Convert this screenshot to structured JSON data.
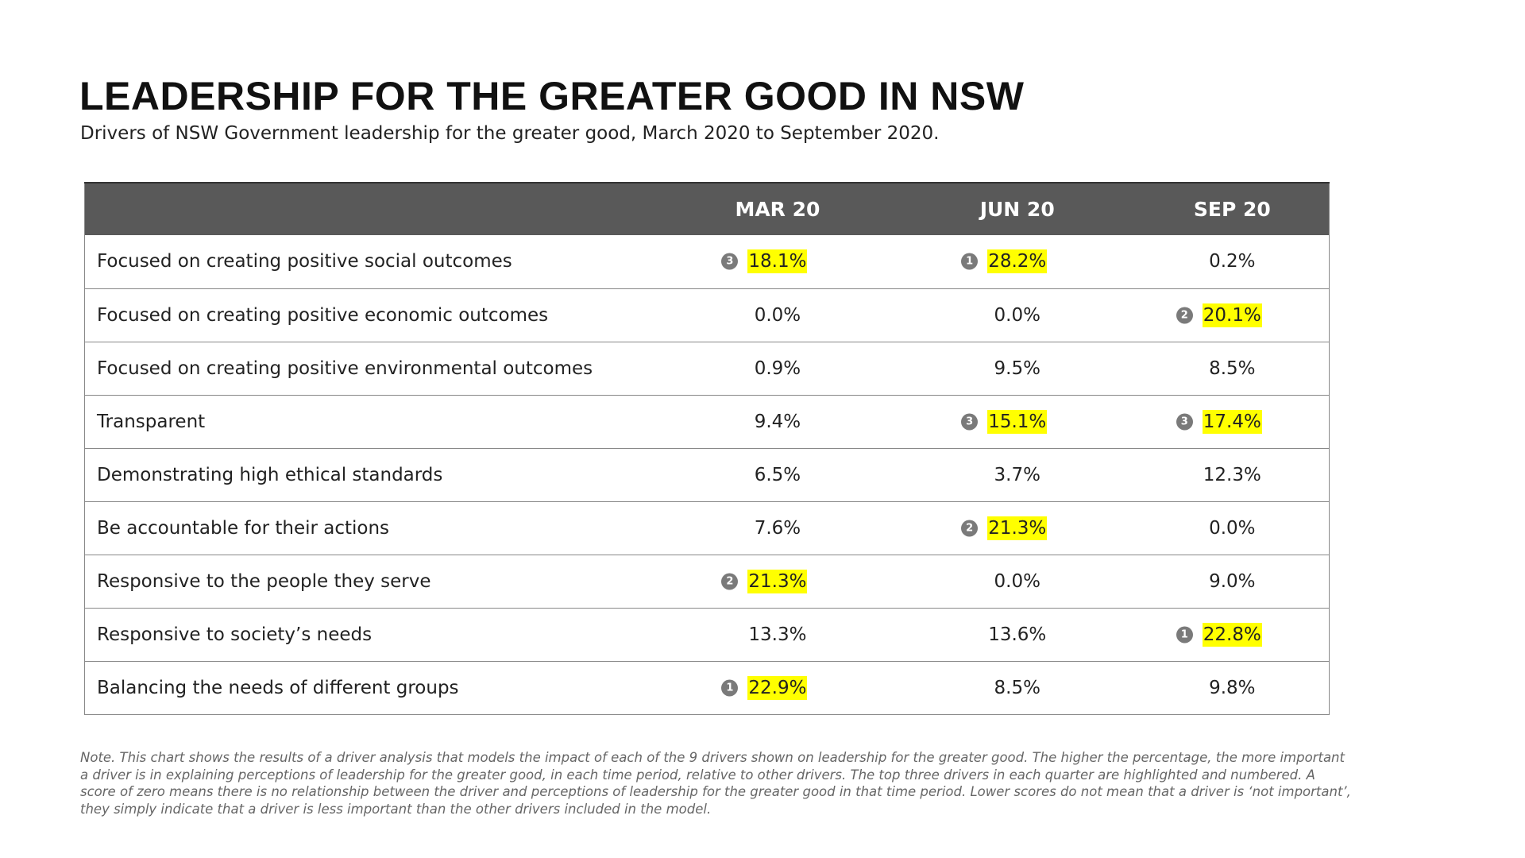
{
  "title": "LEADERSHIP FOR THE GREATER GOOD IN NSW",
  "subtitle": "Drivers of NSW Government leadership for the greater good, March 2020 to September 2020.",
  "colors": {
    "header_bg": "#595959",
    "highlight": "#ffff00",
    "badge": "#7a7a7a"
  },
  "table": {
    "columns": [
      "",
      "MAR 20",
      "JUN 20",
      "SEP 20"
    ],
    "rows": [
      {
        "label": "Focused on creating positive social outcomes",
        "cells": [
          {
            "value": "18.1%",
            "rank": "3"
          },
          {
            "value": "28.2%",
            "rank": "1"
          },
          {
            "value": "0.2%",
            "rank": null
          }
        ]
      },
      {
        "label": "Focused on creating positive economic outcomes",
        "cells": [
          {
            "value": "0.0%",
            "rank": null
          },
          {
            "value": "0.0%",
            "rank": null
          },
          {
            "value": "20.1%",
            "rank": "2"
          }
        ]
      },
      {
        "label": "Focused on creating positive environmental outcomes",
        "cells": [
          {
            "value": "0.9%",
            "rank": null
          },
          {
            "value": "9.5%",
            "rank": null
          },
          {
            "value": "8.5%",
            "rank": null
          }
        ]
      },
      {
        "label": "Transparent",
        "cells": [
          {
            "value": "9.4%",
            "rank": null
          },
          {
            "value": "15.1%",
            "rank": "3"
          },
          {
            "value": "17.4%",
            "rank": "3"
          }
        ]
      },
      {
        "label": "Demonstrating high ethical standards",
        "cells": [
          {
            "value": "6.5%",
            "rank": null
          },
          {
            "value": "3.7%",
            "rank": null
          },
          {
            "value": "12.3%",
            "rank": null
          }
        ]
      },
      {
        "label": "Be accountable for their actions",
        "cells": [
          {
            "value": "7.6%",
            "rank": null
          },
          {
            "value": "21.3%",
            "rank": "2"
          },
          {
            "value": "0.0%",
            "rank": null
          }
        ]
      },
      {
        "label": "Responsive to the people they serve",
        "cells": [
          {
            "value": "21.3%",
            "rank": "2"
          },
          {
            "value": "0.0%",
            "rank": null
          },
          {
            "value": "9.0%",
            "rank": null
          }
        ]
      },
      {
        "label": "Responsive to society’s needs",
        "cells": [
          {
            "value": "13.3%",
            "rank": null
          },
          {
            "value": "13.6%",
            "rank": null
          },
          {
            "value": "22.8%",
            "rank": "1"
          }
        ]
      },
      {
        "label": "Balancing the needs of different groups",
        "cells": [
          {
            "value": "22.9%",
            "rank": "1"
          },
          {
            "value": "8.5%",
            "rank": null
          },
          {
            "value": "9.8%",
            "rank": null
          }
        ]
      }
    ]
  },
  "note": "Note. This chart shows the results of a driver analysis that models the impact of each of the 9 drivers shown on leadership for the greater good. The higher the percentage, the more important a driver is in explaining perceptions of leadership for the greater good, in each time period, relative to other drivers. The top three drivers in each quarter are highlighted and numbered. A score of zero means there is no relationship between the driver and perceptions of leadership for the greater good in that time period. Lower scores do not mean that a driver is ‘not important’, they simply indicate that a driver is less important than the other drivers included in the model."
}
